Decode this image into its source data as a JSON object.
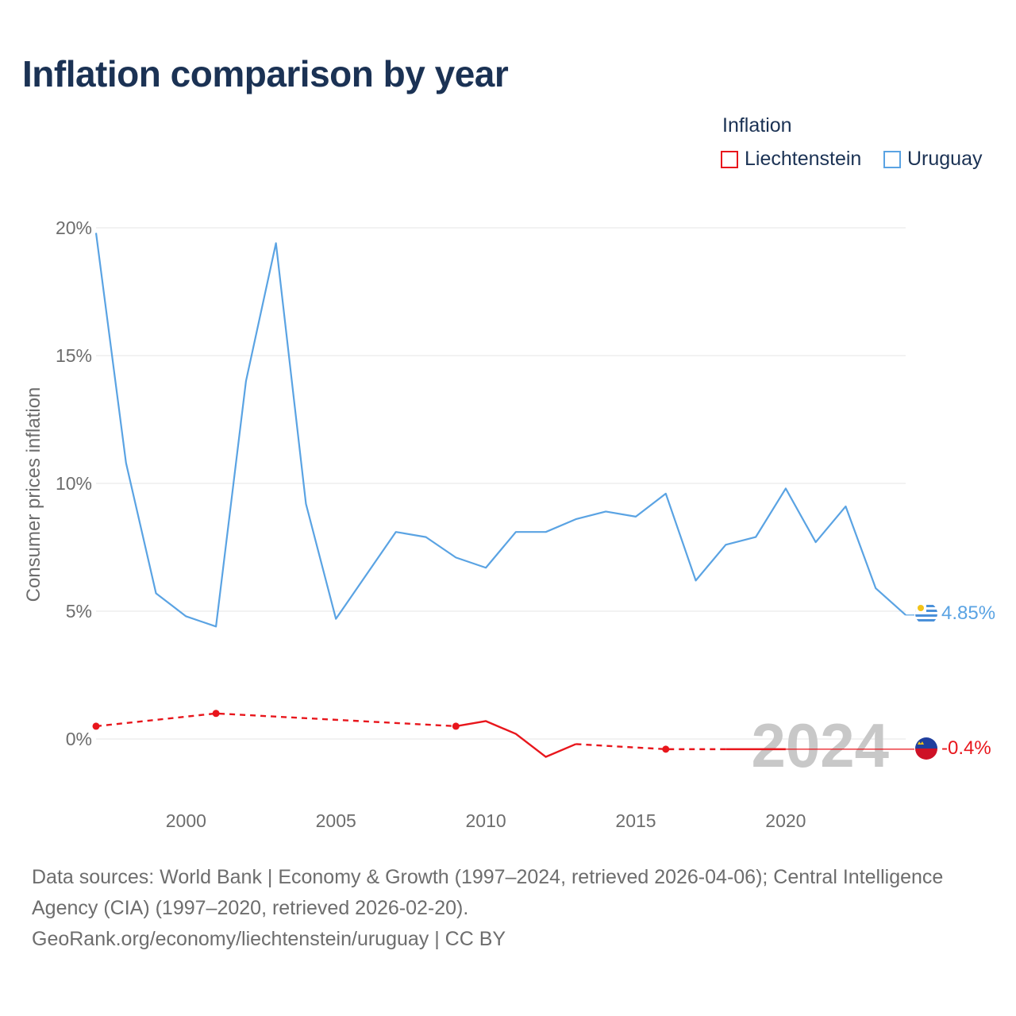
{
  "title": "Inflation comparison by year",
  "legend": {
    "title": "Inflation",
    "items": [
      {
        "label": "Liechtenstein",
        "color": "#e8161c"
      },
      {
        "label": "Uruguay",
        "color": "#5aa3e3"
      }
    ]
  },
  "year_watermark": "2024",
  "footer": {
    "line1": "Data sources: World Bank | Economy & Growth (1997–2024, retrieved 2026-04-06); Central Intelligence",
    "line2": "Agency (CIA) (1997–2020, retrieved 2026-02-20).",
    "line3": "GeoRank.org/economy/liechtenstein/uruguay | CC BY"
  },
  "chart_data": {
    "type": "line",
    "title": "Inflation comparison by year",
    "xlabel": "",
    "ylabel": "Consumer prices inflation",
    "xlim": [
      1997,
      2024
    ],
    "ylim": [
      -2.5,
      21
    ],
    "x_ticks": [
      2000,
      2005,
      2010,
      2015,
      2020
    ],
    "y_ticks": [
      0,
      5,
      10,
      15,
      20
    ],
    "y_tick_labels": [
      "0%",
      "5%",
      "10%",
      "15%",
      "20%"
    ],
    "grid": true,
    "series": [
      {
        "name": "Uruguay",
        "color": "#5aa3e3",
        "end_label": "4.85%",
        "points": [
          {
            "x": 1997,
            "y": 19.8
          },
          {
            "x": 1998,
            "y": 10.8
          },
          {
            "x": 1999,
            "y": 5.7
          },
          {
            "x": 2000,
            "y": 4.8
          },
          {
            "x": 2001,
            "y": 4.4
          },
          {
            "x": 2002,
            "y": 14.0
          },
          {
            "x": 2003,
            "y": 19.4
          },
          {
            "x": 2004,
            "y": 9.2
          },
          {
            "x": 2005,
            "y": 4.7
          },
          {
            "x": 2006,
            "y": 6.4
          },
          {
            "x": 2007,
            "y": 8.1
          },
          {
            "x": 2008,
            "y": 7.9
          },
          {
            "x": 2009,
            "y": 7.1
          },
          {
            "x": 2010,
            "y": 6.7
          },
          {
            "x": 2011,
            "y": 8.1
          },
          {
            "x": 2012,
            "y": 8.1
          },
          {
            "x": 2013,
            "y": 8.6
          },
          {
            "x": 2014,
            "y": 8.9
          },
          {
            "x": 2015,
            "y": 8.7
          },
          {
            "x": 2016,
            "y": 9.6
          },
          {
            "x": 2017,
            "y": 6.2
          },
          {
            "x": 2018,
            "y": 7.6
          },
          {
            "x": 2019,
            "y": 7.9
          },
          {
            "x": 2020,
            "y": 9.8
          },
          {
            "x": 2021,
            "y": 7.7
          },
          {
            "x": 2022,
            "y": 9.1
          },
          {
            "x": 2023,
            "y": 5.9
          },
          {
            "x": 2024,
            "y": 4.85
          }
        ]
      },
      {
        "name": "Liechtenstein",
        "color": "#e8161c",
        "end_label": "-0.4%",
        "points": [
          {
            "x": 1997,
            "y": 0.5
          },
          {
            "x": 2001,
            "y": 1.0
          },
          {
            "x": 2009,
            "y": 0.5
          },
          {
            "x": 2010,
            "y": 0.7
          },
          {
            "x": 2011,
            "y": 0.2
          },
          {
            "x": 2012,
            "y": -0.7
          },
          {
            "x": 2013,
            "y": -0.2
          },
          {
            "x": 2016,
            "y": -0.4
          },
          {
            "x": 2018,
            "y": -0.4
          },
          {
            "x": 2020,
            "y": -0.4
          }
        ],
        "solid_segments": [
          [
            2009,
            2013
          ],
          [
            2018,
            2020
          ]
        ],
        "dashed_segments": [
          [
            1997,
            2009
          ],
          [
            2013,
            2018
          ]
        ],
        "markers": [
          1997,
          2001,
          2009,
          2016
        ],
        "projection_to": 2024,
        "projection_value": -0.4
      }
    ]
  }
}
